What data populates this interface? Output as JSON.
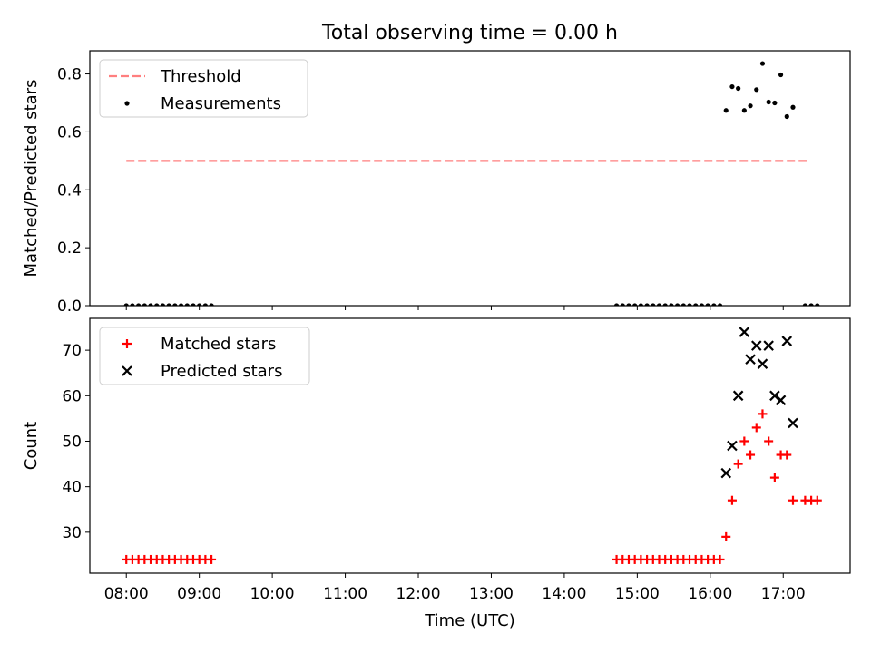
{
  "chart_data": {
    "type": "scatter",
    "title": "Total observing time = 0.00 h",
    "xlabel": "Time (UTC)",
    "x_ticks": [
      "08:00",
      "09:00",
      "10:00",
      "11:00",
      "12:00",
      "13:00",
      "14:00",
      "15:00",
      "16:00",
      "17:00"
    ],
    "xlim": [
      "07:30",
      "17:55"
    ],
    "panels": [
      {
        "ylabel": "Matched/Predicted stars",
        "ylim": [
          0,
          0.88
        ],
        "y_ticks": [
          "0.0",
          "0.2",
          "0.4",
          "0.6",
          "0.8"
        ],
        "legend": "top-left",
        "series": [
          {
            "name": "Threshold",
            "type": "line",
            "style": "dashed",
            "color": "#ff7f7f",
            "points": [
              [
                "08:00",
                0.5
              ],
              [
                "17:20",
                0.5
              ]
            ]
          },
          {
            "name": "Measurements",
            "type": "scatter",
            "marker": "dot",
            "color": "#000000",
            "points": [
              [
                "08:00",
                0
              ],
              [
                "08:05",
                0
              ],
              [
                "08:10",
                0
              ],
              [
                "08:15",
                0
              ],
              [
                "08:20",
                0
              ],
              [
                "08:25",
                0
              ],
              [
                "08:30",
                0
              ],
              [
                "08:35",
                0
              ],
              [
                "08:40",
                0
              ],
              [
                "08:45",
                0
              ],
              [
                "08:50",
                0
              ],
              [
                "08:55",
                0
              ],
              [
                "09:00",
                0
              ],
              [
                "09:05",
                0
              ],
              [
                "09:10",
                0
              ],
              [
                "14:43",
                0
              ],
              [
                "14:48",
                0
              ],
              [
                "14:53",
                0
              ],
              [
                "14:58",
                0
              ],
              [
                "15:03",
                0
              ],
              [
                "15:08",
                0
              ],
              [
                "15:13",
                0
              ],
              [
                "15:18",
                0
              ],
              [
                "15:23",
                0
              ],
              [
                "15:28",
                0
              ],
              [
                "15:33",
                0
              ],
              [
                "15:38",
                0
              ],
              [
                "15:43",
                0
              ],
              [
                "15:48",
                0
              ],
              [
                "15:53",
                0
              ],
              [
                "15:58",
                0
              ],
              [
                "16:03",
                0
              ],
              [
                "16:08",
                0
              ],
              [
                "16:13",
                0.674
              ],
              [
                "16:18",
                0.756
              ],
              [
                "16:23",
                0.75
              ],
              [
                "16:28",
                0.674
              ],
              [
                "16:33",
                0.69
              ],
              [
                "16:38",
                0.746
              ],
              [
                "16:43",
                0.836
              ],
              [
                "16:48",
                0.703
              ],
              [
                "16:53",
                0.7
              ],
              [
                "16:58",
                0.797
              ],
              [
                "17:03",
                0.653
              ],
              [
                "17:08",
                0.685
              ],
              [
                "17:18",
                0
              ],
              [
                "17:23",
                0
              ],
              [
                "17:28",
                0
              ]
            ]
          }
        ]
      },
      {
        "ylabel": "Count",
        "ylim": [
          21,
          77
        ],
        "y_ticks": [
          "30",
          "40",
          "50",
          "60",
          "70"
        ],
        "legend": "top-left",
        "series": [
          {
            "name": "Matched stars",
            "type": "scatter",
            "marker": "plus",
            "color": "#ff0000",
            "points": [
              [
                "08:00",
                24
              ],
              [
                "08:05",
                24
              ],
              [
                "08:10",
                24
              ],
              [
                "08:15",
                24
              ],
              [
                "08:20",
                24
              ],
              [
                "08:25",
                24
              ],
              [
                "08:30",
                24
              ],
              [
                "08:35",
                24
              ],
              [
                "08:40",
                24
              ],
              [
                "08:45",
                24
              ],
              [
                "08:50",
                24
              ],
              [
                "08:55",
                24
              ],
              [
                "09:00",
                24
              ],
              [
                "09:05",
                24
              ],
              [
                "09:10",
                24
              ],
              [
                "14:43",
                24
              ],
              [
                "14:48",
                24
              ],
              [
                "14:53",
                24
              ],
              [
                "14:58",
                24
              ],
              [
                "15:03",
                24
              ],
              [
                "15:08",
                24
              ],
              [
                "15:13",
                24
              ],
              [
                "15:18",
                24
              ],
              [
                "15:23",
                24
              ],
              [
                "15:28",
                24
              ],
              [
                "15:33",
                24
              ],
              [
                "15:38",
                24
              ],
              [
                "15:43",
                24
              ],
              [
                "15:48",
                24
              ],
              [
                "15:53",
                24
              ],
              [
                "15:58",
                24
              ],
              [
                "16:03",
                24
              ],
              [
                "16:08",
                24
              ],
              [
                "16:13",
                29
              ],
              [
                "16:18",
                37
              ],
              [
                "16:23",
                45
              ],
              [
                "16:28",
                50
              ],
              [
                "16:33",
                47
              ],
              [
                "16:38",
                53
              ],
              [
                "16:43",
                56
              ],
              [
                "16:48",
                50
              ],
              [
                "16:53",
                42
              ],
              [
                "16:58",
                47
              ],
              [
                "17:03",
                47
              ],
              [
                "17:08",
                37
              ],
              [
                "17:18",
                37
              ],
              [
                "17:23",
                37
              ],
              [
                "17:28",
                37
              ]
            ]
          },
          {
            "name": "Predicted stars",
            "type": "scatter",
            "marker": "x",
            "color": "#000000",
            "points": [
              [
                "16:13",
                43
              ],
              [
                "16:18",
                49
              ],
              [
                "16:23",
                60
              ],
              [
                "16:28",
                74
              ],
              [
                "16:33",
                68
              ],
              [
                "16:38",
                71
              ],
              [
                "16:43",
                67
              ],
              [
                "16:48",
                71
              ],
              [
                "16:53",
                60
              ],
              [
                "16:58",
                59
              ],
              [
                "17:03",
                72
              ],
              [
                "17:08",
                54
              ]
            ]
          }
        ]
      }
    ]
  }
}
